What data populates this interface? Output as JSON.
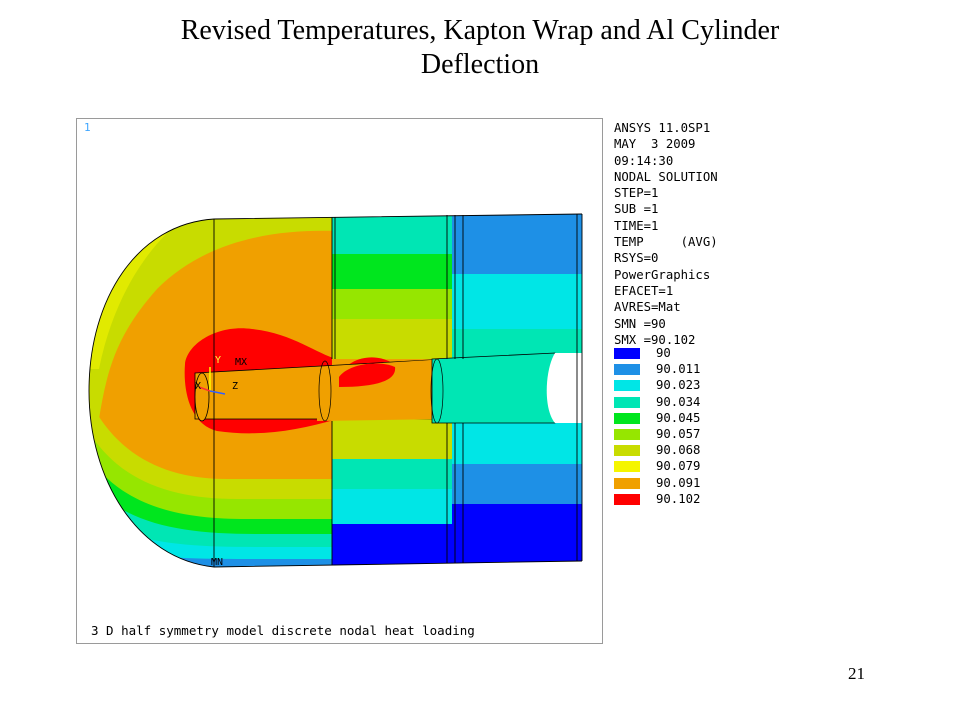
{
  "slide": {
    "title_line1": "Revised Temperatures, Kapton Wrap and Al Cylinder",
    "title_line2": "Deflection",
    "page_number": "21"
  },
  "plot": {
    "window_number": "1",
    "caption": "3 D half symmetry model discrete nodal heat loading",
    "markers": {
      "mx": "MX",
      "mn": "MN"
    },
    "axes": {
      "x": "X",
      "y": "Y",
      "z": "Z"
    }
  },
  "info": [
    "ANSYS 11.0SP1",
    "MAY  3 2009",
    "09:14:30",
    "NODAL SOLUTION",
    "STEP=1",
    "SUB =1",
    "TIME=1",
    "TEMP     (AVG)",
    "RSYS=0",
    "PowerGraphics",
    "EFACET=1",
    "AVRES=Mat",
    "SMN =90",
    "SMX =90.102"
  ],
  "legend": [
    {
      "value": "90",
      "color": "#0000ff"
    },
    {
      "value": "90.011",
      "color": "#1e90e6"
    },
    {
      "value": "90.023",
      "color": "#00e6e6"
    },
    {
      "value": "90.034",
      "color": "#00e6b4"
    },
    {
      "value": "90.045",
      "color": "#00e61e"
    },
    {
      "value": "90.057",
      "color": "#96e600"
    },
    {
      "value": "90.068",
      "color": "#c8dc00"
    },
    {
      "value": "90.079",
      "color": "#f5f500"
    },
    {
      "value": "90.091",
      "color": "#f0a000"
    },
    {
      "value": "90.102",
      "color": "#ff0000"
    }
  ]
}
